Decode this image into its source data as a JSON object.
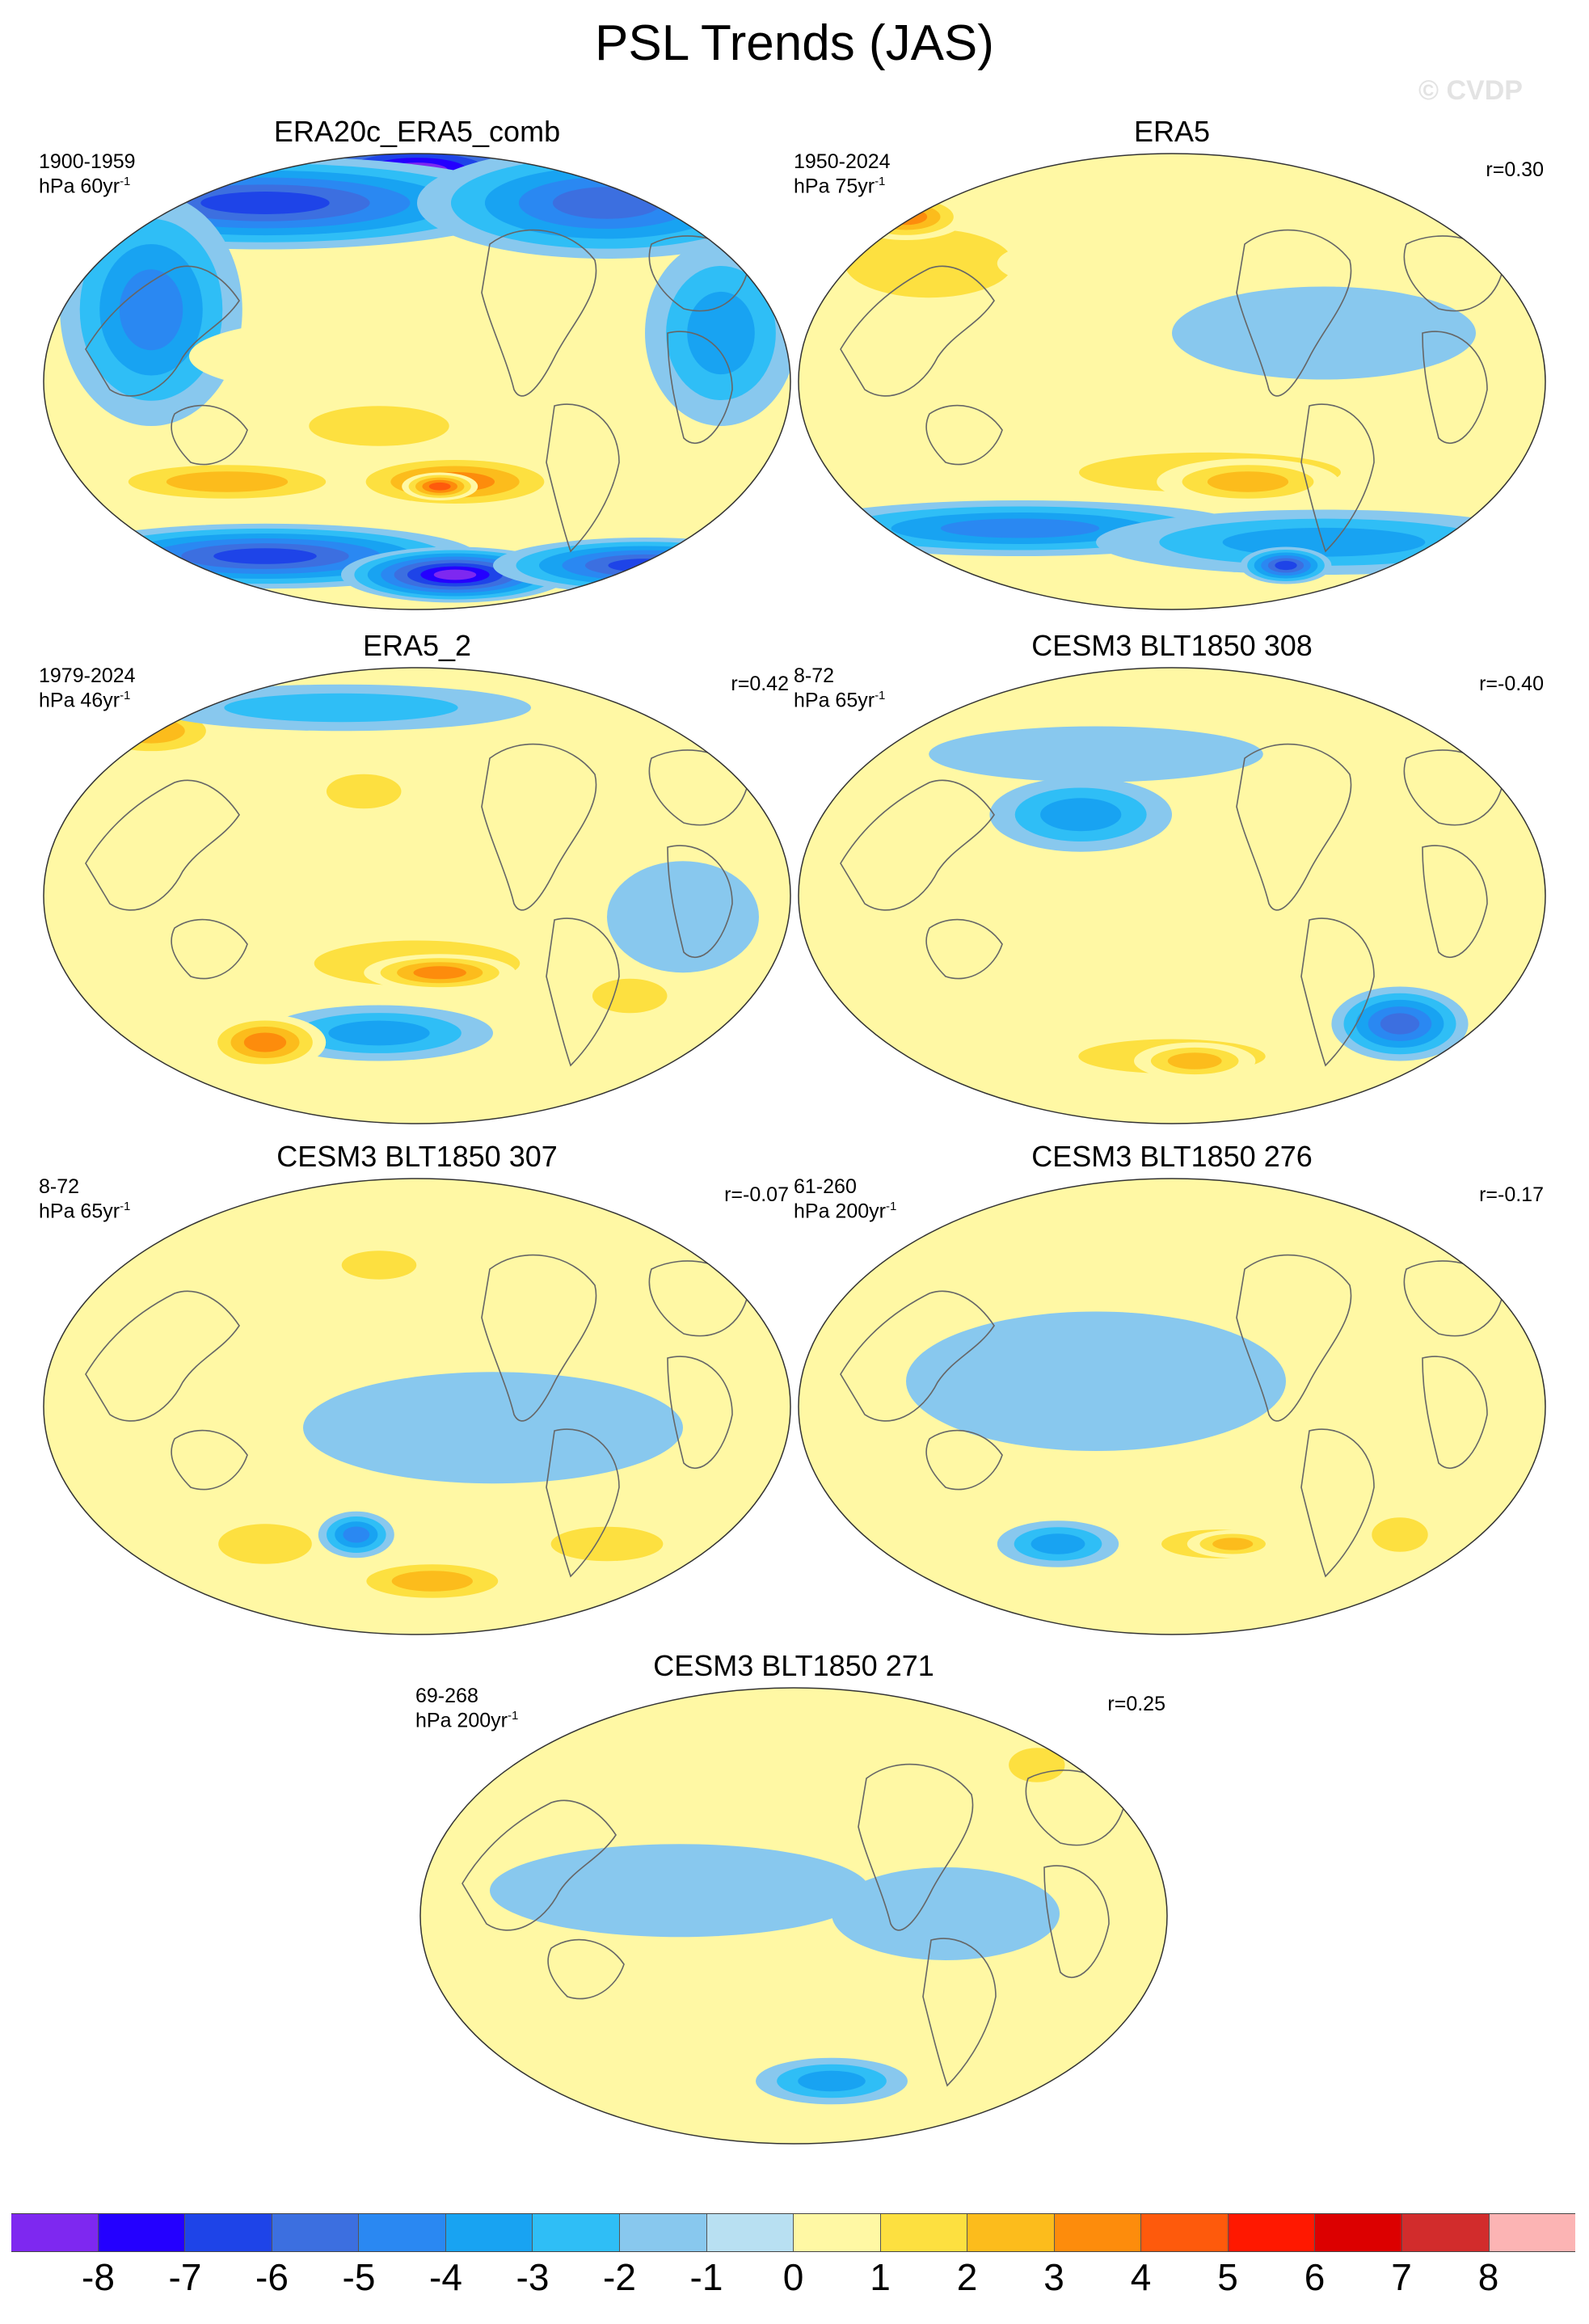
{
  "title": "PSL Trends (JAS)",
  "watermark": "© CVDP",
  "panels": [
    {
      "title": "ERA20c_ERA5_comb",
      "period": "1900-1959",
      "units_prefix": "hPa 60yr",
      "units_sup": "-1",
      "r": "",
      "blobs": [
        [
          0.5,
          0.05,
          0.22,
          0.09,
          -8
        ],
        [
          0.3,
          0.12,
          0.35,
          0.1,
          -6
        ],
        [
          0.75,
          0.12,
          0.25,
          0.12,
          -5
        ],
        [
          0.15,
          0.35,
          0.12,
          0.25,
          -4
        ],
        [
          0.9,
          0.4,
          0.1,
          0.2,
          -3
        ],
        [
          0.4,
          0.45,
          0.2,
          0.08,
          1
        ],
        [
          0.45,
          0.6,
          0.15,
          0.07,
          2
        ],
        [
          0.25,
          0.72,
          0.18,
          0.05,
          3
        ],
        [
          0.55,
          0.72,
          0.15,
          0.06,
          4
        ],
        [
          0.53,
          0.73,
          0.05,
          0.03,
          5
        ],
        [
          0.3,
          0.88,
          0.28,
          0.07,
          -6
        ],
        [
          0.55,
          0.92,
          0.15,
          0.06,
          -8
        ],
        [
          0.8,
          0.9,
          0.2,
          0.06,
          -6
        ]
      ]
    },
    {
      "title": "ERA5",
      "period": "1950-2024",
      "units_prefix": "hPa 75yr",
      "units_sup": "-1",
      "r": "r=0.30",
      "blobs": [
        [
          0.18,
          0.25,
          0.18,
          0.12,
          2
        ],
        [
          0.15,
          0.15,
          0.08,
          0.05,
          4
        ],
        [
          0.42,
          0.25,
          0.15,
          0.06,
          1
        ],
        [
          0.92,
          0.15,
          0.06,
          0.05,
          3
        ],
        [
          0.7,
          0.4,
          0.2,
          0.1,
          -1
        ],
        [
          0.35,
          0.6,
          0.25,
          0.06,
          1
        ],
        [
          0.55,
          0.7,
          0.28,
          0.07,
          2
        ],
        [
          0.6,
          0.72,
          0.12,
          0.05,
          3
        ],
        [
          0.3,
          0.82,
          0.3,
          0.06,
          -4
        ],
        [
          0.7,
          0.85,
          0.3,
          0.07,
          -3
        ],
        [
          0.65,
          0.9,
          0.06,
          0.04,
          -6
        ]
      ]
    },
    {
      "title": "ERA5_2",
      "period": "1979-2024",
      "units_prefix": "hPa 46yr",
      "units_sup": "-1",
      "r": "r=0.42",
      "blobs": [
        [
          0.15,
          0.15,
          0.1,
          0.06,
          3
        ],
        [
          0.4,
          0.1,
          0.25,
          0.05,
          -2
        ],
        [
          0.43,
          0.28,
          0.08,
          0.06,
          2
        ],
        [
          0.5,
          0.65,
          0.22,
          0.08,
          2
        ],
        [
          0.53,
          0.67,
          0.1,
          0.04,
          4
        ],
        [
          0.85,
          0.55,
          0.1,
          0.12,
          -1
        ],
        [
          0.45,
          0.8,
          0.15,
          0.06,
          -3
        ],
        [
          0.3,
          0.82,
          0.08,
          0.06,
          4
        ],
        [
          0.78,
          0.72,
          0.08,
          0.06,
          2
        ]
      ]
    },
    {
      "title": "CESM3 BLT1850 308",
      "period": "8-72",
      "units_prefix": "hPa 65yr",
      "units_sup": "-1",
      "r": "r=-0.40",
      "blobs": [
        [
          0.38,
          0.33,
          0.12,
          0.08,
          -3
        ],
        [
          0.9,
          0.12,
          0.06,
          0.06,
          3
        ],
        [
          0.8,
          0.78,
          0.09,
          0.08,
          -5
        ],
        [
          0.5,
          0.85,
          0.2,
          0.06,
          2
        ],
        [
          0.53,
          0.86,
          0.08,
          0.04,
          3
        ],
        [
          0.4,
          0.2,
          0.22,
          0.06,
          -1
        ]
      ]
    },
    {
      "title": "CESM3 BLT1850 307",
      "period": "8-72",
      "units_prefix": "hPa 65yr",
      "units_sup": "-1",
      "r": "r=-0.07",
      "blobs": [
        [
          0.45,
          0.2,
          0.08,
          0.05,
          2
        ],
        [
          0.3,
          0.8,
          0.1,
          0.07,
          2
        ],
        [
          0.42,
          0.78,
          0.05,
          0.05,
          -4
        ],
        [
          0.52,
          0.88,
          0.12,
          0.05,
          3
        ],
        [
          0.75,
          0.8,
          0.12,
          0.06,
          2
        ],
        [
          0.6,
          0.55,
          0.25,
          0.12,
          -1
        ],
        [
          0.2,
          0.4,
          0.1,
          0.08,
          1
        ]
      ]
    },
    {
      "title": "CESM3 BLT1850 276",
      "period": "61-260",
      "units_prefix": "hPa 200yr",
      "units_sup": "-1",
      "r": "r=-0.17",
      "blobs": [
        [
          0.35,
          0.8,
          0.08,
          0.05,
          -3
        ],
        [
          0.56,
          0.8,
          0.12,
          0.05,
          2
        ],
        [
          0.58,
          0.8,
          0.06,
          0.03,
          3
        ],
        [
          0.8,
          0.78,
          0.06,
          0.06,
          2
        ],
        [
          0.4,
          0.45,
          0.25,
          0.15,
          -1
        ]
      ]
    },
    {
      "title": "CESM3 BLT1850 271",
      "period": "69-268",
      "units_prefix": "hPa 200yr",
      "units_sup": "-1",
      "r": "r=0.25",
      "blobs": [
        [
          0.82,
          0.18,
          0.06,
          0.06,
          2
        ],
        [
          0.55,
          0.86,
          0.1,
          0.05,
          -3
        ],
        [
          0.35,
          0.45,
          0.25,
          0.1,
          -1
        ],
        [
          0.7,
          0.5,
          0.15,
          0.1,
          -1
        ]
      ]
    }
  ],
  "colorbar": {
    "colors": [
      "#7e28f0",
      "#2400ff",
      "#1e44e8",
      "#3c6fe0",
      "#2a88f2",
      "#18a3f2",
      "#2fbef6",
      "#88c8ee",
      "#b8e0f2",
      "#fff8a4",
      "#fde040",
      "#fcbc1c",
      "#fd8c0c",
      "#fe5a0c",
      "#ff1800",
      "#dc0000",
      "#d22c2c",
      "#fcb4b4"
    ],
    "labels": [
      "-8",
      "-7",
      "-6",
      "-5",
      "-4",
      "-3",
      "-2",
      "-1",
      "0",
      "1",
      "2",
      "3",
      "4",
      "5",
      "6",
      "7",
      "8"
    ]
  }
}
